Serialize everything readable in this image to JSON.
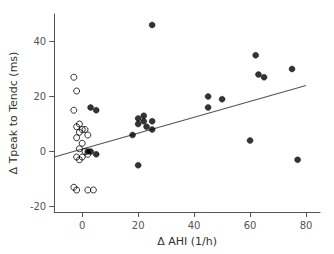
{
  "chart_data": {
    "type": "scatter",
    "xlabel": "Δ AHI (1/h)",
    "ylabel": "Δ Tpeak to Tendc (ms)",
    "xlim": [
      -10,
      85
    ],
    "ylim": [
      -22,
      50
    ],
    "xticks": [
      0,
      20,
      40,
      60,
      80
    ],
    "yticks": [
      -20,
      0,
      20,
      40
    ],
    "grid": false,
    "series": [
      {
        "type": "scatter",
        "marker": "filled",
        "color": "#000000",
        "x": [
          25,
          3,
          5,
          22,
          20,
          22,
          25,
          20,
          23,
          25,
          18,
          20,
          45,
          45,
          50,
          62,
          63,
          65,
          75,
          77,
          60,
          2,
          3,
          5
        ],
        "values": [
          46,
          16,
          15,
          13,
          12,
          11,
          11,
          10,
          9,
          8,
          6,
          -5,
          20,
          16,
          19,
          35,
          28,
          27,
          30,
          -3,
          4,
          0,
          0,
          -1
        ]
      },
      {
        "type": "scatter",
        "marker": "open",
        "color": "#000000",
        "x": [
          -3,
          -2,
          -3,
          -1,
          -2,
          0,
          1,
          -1,
          2,
          -2,
          0,
          -1,
          1,
          2,
          -2,
          0,
          -1,
          -3,
          -2,
          2,
          4
        ],
        "values": [
          27,
          22,
          15,
          10,
          9,
          8,
          8,
          7,
          6,
          5,
          3,
          1,
          0,
          -1,
          -2,
          -2,
          -3,
          -13,
          -14,
          -14,
          -14
        ]
      },
      {
        "type": "line",
        "line_style": "solid",
        "color": "#555555",
        "x": [
          -10,
          80
        ],
        "values": [
          -2,
          24
        ]
      }
    ]
  }
}
